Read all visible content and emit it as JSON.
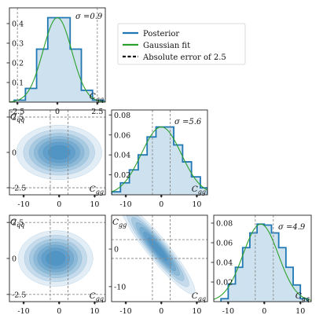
{
  "legend": {
    "items": [
      {
        "label": "Posterior",
        "color": "#1f77b4",
        "style": "solid"
      },
      {
        "label": "Gaussian fit",
        "color": "#2ca02c",
        "style": "solid"
      },
      {
        "label": "Absolute error of 2.5",
        "color": "#000000",
        "style": "dashed"
      }
    ]
  },
  "chart_data": [
    {
      "id": "hist-cqq",
      "type": "bar",
      "variable": "C_qq",
      "sigma_label": "σ =0.9",
      "xlabel": "C_qq",
      "xlim": [
        -3.0,
        3.0
      ],
      "ylim": [
        0,
        0.48
      ],
      "xticks": [
        -2.5,
        0,
        2.5
      ],
      "yticks": [
        0.1,
        0.2,
        0.3,
        0.4
      ],
      "bin_edges": [
        -2.7,
        -2.0,
        -1.3,
        -0.6,
        0.1,
        0.8,
        1.5,
        2.2,
        2.9
      ],
      "values": [
        0.01,
        0.07,
        0.27,
        0.43,
        0.43,
        0.27,
        0.06,
        0.01
      ],
      "gaussian": {
        "mean": 0.0,
        "sigma": 0.9
      },
      "reference_lines_x": [
        -2.5,
        2.5
      ]
    },
    {
      "id": "hist-cgg",
      "type": "bar",
      "variable": "C_gg",
      "sigma_label": "σ =5.6",
      "xlabel": "C_gg",
      "xlim": [
        -14,
        13
      ],
      "ylim": [
        0,
        0.085
      ],
      "xticks": [
        -10,
        0,
        10
      ],
      "yticks": [
        0.02,
        0.04,
        0.06,
        0.08
      ],
      "bin_edges": [
        -14,
        -11.5,
        -9,
        -6.5,
        -4,
        -1.5,
        1,
        3.5,
        6,
        8.5,
        11,
        13
      ],
      "values": [
        0.003,
        0.012,
        0.025,
        0.04,
        0.058,
        0.068,
        0.068,
        0.05,
        0.033,
        0.018,
        0.007
      ],
      "gaussian": {
        "mean": 0.0,
        "sigma": 5.6
      },
      "reference_lines_x": [
        -2.5,
        2.5
      ]
    },
    {
      "id": "hist-cgq",
      "type": "bar",
      "variable": "C_gq",
      "sigma_label": "σ =4.9",
      "xlabel": "C_gq",
      "xlim": [
        -14,
        13
      ],
      "ylim": [
        0,
        0.088
      ],
      "xticks": [
        -10,
        0,
        10
      ],
      "yticks": [
        0.02,
        0.04,
        0.06,
        0.08
      ],
      "bin_edges": [
        -12,
        -10,
        -8,
        -6,
        -4,
        -2,
        0,
        2,
        4,
        6,
        8,
        10,
        12
      ],
      "values": [
        0.003,
        0.018,
        0.035,
        0.055,
        0.07,
        0.079,
        0.078,
        0.07,
        0.055,
        0.035,
        0.017,
        0.003
      ],
      "gaussian": {
        "mean": -1.0,
        "sigma": 4.9
      },
      "reference_lines_x": [
        -2.5,
        2.5
      ]
    },
    {
      "id": "kde-cgg-cqq",
      "type": "heatmap",
      "xlabel": "C_gg",
      "ylabel": "C_qq",
      "xlim": [
        -14,
        13
      ],
      "ylim": [
        -3,
        3
      ],
      "xticks": [
        -10,
        0,
        10
      ],
      "yticks": [
        -2.5,
        0,
        2.5
      ],
      "center": [
        0,
        0
      ],
      "spread": [
        5.6,
        0.9
      ],
      "correlation": 0.0,
      "reference_lines_x": [
        -2.5,
        2.5
      ],
      "reference_lines_y": [
        -2.5,
        2.5
      ]
    },
    {
      "id": "kde-cgq-cqq",
      "type": "heatmap",
      "xlabel": "C_gq",
      "ylabel": "C_qq",
      "xlim": [
        -14,
        13
      ],
      "ylim": [
        -3,
        3
      ],
      "xticks": [
        -10,
        0,
        10
      ],
      "yticks": [
        -2.5,
        0,
        2.5
      ],
      "center": [
        -1,
        0
      ],
      "spread": [
        4.9,
        0.9
      ],
      "correlation": 0.0,
      "reference_lines_x": [
        -2.5,
        2.5
      ],
      "reference_lines_y": [
        -2.5,
        2.5
      ]
    },
    {
      "id": "kde-cgq-cgg",
      "type": "heatmap",
      "xlabel": "C_gq",
      "ylabel": "C_gg",
      "xlim": [
        -14,
        13
      ],
      "ylim": [
        -14,
        9
      ],
      "xticks": [
        -10,
        0,
        10
      ],
      "yticks": [
        -10,
        0
      ],
      "center": [
        -1,
        0
      ],
      "spread": [
        4.9,
        5.6
      ],
      "correlation": -0.93,
      "reference_lines_x": [
        -2.5,
        2.5
      ],
      "reference_lines_y": [
        -2.5,
        2.5
      ]
    }
  ]
}
